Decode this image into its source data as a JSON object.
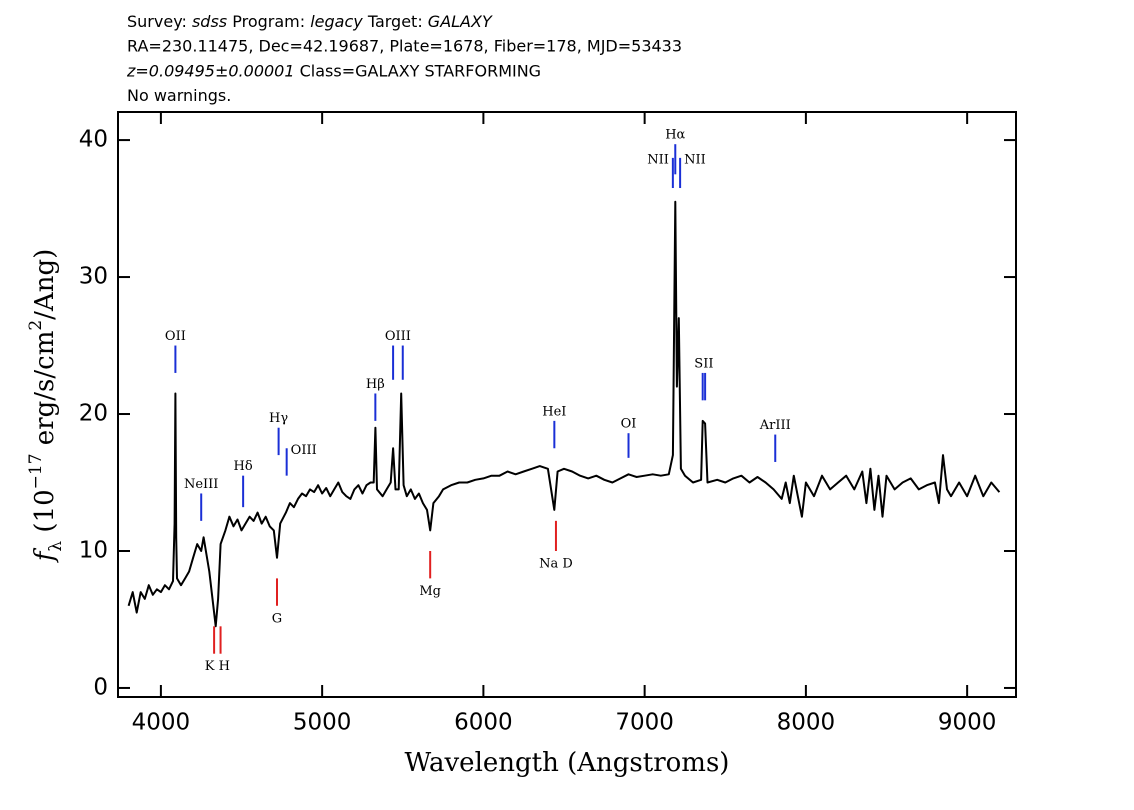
{
  "chart_data": {
    "type": "line",
    "header": [
      [
        {
          "text": "Survey: ",
          "italic": false
        },
        {
          "text": "sdss",
          "italic": true
        },
        {
          "text": " Program: ",
          "italic": false
        },
        {
          "text": "legacy",
          "italic": true
        },
        {
          "text": " Target: ",
          "italic": false
        },
        {
          "text": "GALAXY",
          "italic": true
        }
      ],
      [
        {
          "text": "RA=230.11475, Dec=42.19687, Plate=1678, Fiber=178, MJD=53433",
          "italic": false
        }
      ],
      [
        {
          "text": "z=0.09495±0.00001",
          "italic": true
        },
        {
          "text": " Class=GALAXY STARFORMING",
          "italic": false
        }
      ],
      [
        {
          "text": "No warnings.",
          "italic": false
        }
      ]
    ],
    "xlabel": "Wavelength (Angstroms)",
    "ylabel": [
      {
        "text": "f",
        "style": "italic"
      },
      {
        "text": "λ",
        "style": "sub"
      },
      {
        "text": " (10",
        "style": "normal"
      },
      {
        "text": "−17",
        "style": "sup"
      },
      {
        "text": " erg/s/cm",
        "style": "normal"
      },
      {
        "text": "2",
        "style": "sup"
      },
      {
        "text": "/Ang)",
        "style": "normal"
      }
    ],
    "xlim": [
      3734,
      9303
    ],
    "ylim": [
      -0.66,
      42.05
    ],
    "xticks": [
      4000,
      5000,
      6000,
      7000,
      8000,
      9000
    ],
    "yticks": [
      0,
      10,
      20,
      30,
      40
    ],
    "x": [
      3800,
      3825,
      3850,
      3875,
      3900,
      3925,
      3950,
      3975,
      4000,
      4025,
      4050,
      4075,
      4085,
      4090,
      4095,
      4100,
      4125,
      4150,
      4175,
      4200,
      4225,
      4250,
      4265,
      4300,
      4325,
      4340,
      4355,
      4370,
      4400,
      4425,
      4450,
      4475,
      4500,
      4525,
      4550,
      4575,
      4600,
      4625,
      4650,
      4675,
      4700,
      4720,
      4740,
      4775,
      4800,
      4825,
      4850,
      4875,
      4900,
      4925,
      4950,
      4975,
      5000,
      5025,
      5050,
      5075,
      5100,
      5125,
      5150,
      5175,
      5200,
      5225,
      5250,
      5275,
      5300,
      5320,
      5330,
      5340,
      5375,
      5400,
      5425,
      5440,
      5455,
      5475,
      5490,
      5505,
      5525,
      5550,
      5575,
      5600,
      5625,
      5650,
      5670,
      5690,
      5725,
      5750,
      5800,
      5850,
      5900,
      5950,
      6000,
      6050,
      6100,
      6150,
      6200,
      6250,
      6300,
      6350,
      6400,
      6440,
      6460,
      6500,
      6550,
      6600,
      6650,
      6700,
      6750,
      6800,
      6850,
      6900,
      6950,
      7000,
      7050,
      7100,
      7150,
      7175,
      7190,
      7200,
      7212,
      7225,
      7250,
      7300,
      7350,
      7360,
      7375,
      7390,
      7450,
      7500,
      7550,
      7600,
      7650,
      7700,
      7750,
      7800,
      7850,
      7875,
      7900,
      7925,
      7950,
      7975,
      8000,
      8050,
      8100,
      8150,
      8200,
      8250,
      8300,
      8350,
      8375,
      8400,
      8425,
      8450,
      8475,
      8500,
      8550,
      8600,
      8650,
      8700,
      8750,
      8800,
      8825,
      8850,
      8875,
      8900,
      8950,
      9000,
      9050,
      9100,
      9150,
      9200
    ],
    "series": [
      {
        "color": "#000000",
        "values": [
          6.0,
          7.0,
          5.5,
          7.0,
          6.5,
          7.5,
          6.8,
          7.2,
          7.0,
          7.5,
          7.2,
          7.8,
          12,
          21.5,
          11,
          8.0,
          7.5,
          8.0,
          8.5,
          9.5,
          10.5,
          10.0,
          11.0,
          8.5,
          6.0,
          4.5,
          6.5,
          10.5,
          11.5,
          12.5,
          11.8,
          12.3,
          11.5,
          12.0,
          12.5,
          12.2,
          12.8,
          12.0,
          12.5,
          11.8,
          11.5,
          9.5,
          12.0,
          12.8,
          13.5,
          13.2,
          13.8,
          14.2,
          14.0,
          14.5,
          14.3,
          14.8,
          14.2,
          14.6,
          14.0,
          14.5,
          15.0,
          14.3,
          14.0,
          13.8,
          14.5,
          14.8,
          14.2,
          14.8,
          15.0,
          15.0,
          19.0,
          14.5,
          14.0,
          14.5,
          15.0,
          17.5,
          14.5,
          14.5,
          21.5,
          14.8,
          14.0,
          14.5,
          13.8,
          14.2,
          13.5,
          13.0,
          11.5,
          13.5,
          14.0,
          14.5,
          14.8,
          15.0,
          15.0,
          15.2,
          15.3,
          15.5,
          15.5,
          15.8,
          15.6,
          15.8,
          16.0,
          16.2,
          16.0,
          13.0,
          15.8,
          16.0,
          15.8,
          15.5,
          15.3,
          15.5,
          15.2,
          15.0,
          15.3,
          15.6,
          15.4,
          15.5,
          15.6,
          15.5,
          15.6,
          17.0,
          35.5,
          22,
          27,
          16,
          15.5,
          15.0,
          15.2,
          19.5,
          19.3,
          15.0,
          15.2,
          15.0,
          15.3,
          15.5,
          15.0,
          15.4,
          15.0,
          14.5,
          13.8,
          15.0,
          13.5,
          15.5,
          14.0,
          12.5,
          15.0,
          14.0,
          15.5,
          14.5,
          15.0,
          15.5,
          14.5,
          15.8,
          13.5,
          16.0,
          13.0,
          15.5,
          12.5,
          15.5,
          14.5,
          15.0,
          15.3,
          14.5,
          14.8,
          15.0,
          13.5,
          17.0,
          14.5,
          14.0,
          15.0,
          14.0,
          15.5,
          14.0,
          15.0,
          14.3
        ]
      }
    ],
    "annotations": [
      {
        "label": "OII",
        "color": "#1a2fd6",
        "side": "above",
        "ticks": [
          {
            "x": 4090,
            "y0": 23,
            "y1": 25
          }
        ]
      },
      {
        "label": "NeIII",
        "color": "#1a2fd6",
        "side": "above",
        "ticks": [
          {
            "x": 4250,
            "y0": 12.2,
            "y1": 14.2
          }
        ]
      },
      {
        "label": "Hδ",
        "color": "#1a2fd6",
        "side": "above",
        "ticks": [
          {
            "x": 4510,
            "y0": 13.2,
            "y1": 15.5
          }
        ]
      },
      {
        "label": "Hγ",
        "color": "#1a2fd6",
        "side": "above",
        "ticks": [
          {
            "x": 4730,
            "y0": 17,
            "y1": 19
          }
        ]
      },
      {
        "label": "OIII",
        "color": "#1a2fd6",
        "side": "above",
        "ticks": [
          {
            "x": 4780,
            "y0": 15.5,
            "y1": 17.5
          }
        ]
      },
      {
        "label": "Hβ",
        "color": "#1a2fd6",
        "side": "above",
        "ticks": [
          {
            "x": 5330,
            "y0": 19.5,
            "y1": 21.5
          }
        ]
      },
      {
        "label": "OIII",
        "color": "#1a2fd6",
        "side": "above",
        "ticks": [
          {
            "x": 5440,
            "y0": 22.5,
            "y1": 25
          },
          {
            "x": 5500,
            "y0": 22.5,
            "y1": 25
          }
        ]
      },
      {
        "label": "HeI",
        "color": "#1a2fd6",
        "side": "above",
        "ticks": [
          {
            "x": 6440,
            "y0": 17.5,
            "y1": 19.5
          }
        ]
      },
      {
        "label": "OI",
        "color": "#1a2fd6",
        "side": "above",
        "ticks": [
          {
            "x": 6900,
            "y0": 16.8,
            "y1": 18.6
          }
        ]
      },
      {
        "label": "NII",
        "color": "#1a2fd6",
        "side": "above",
        "ticks": [
          {
            "x": 7175,
            "y0": 36.5,
            "y1": 38.7
          }
        ]
      },
      {
        "label": "Hα",
        "color": "#1a2fd6",
        "side": "above",
        "ticks": [
          {
            "x": 7190,
            "y0": 37.5,
            "y1": 39.7
          }
        ]
      },
      {
        "label": "NII",
        "color": "#1a2fd6",
        "side": "above",
        "ticks": [
          {
            "x": 7220,
            "y0": 36.5,
            "y1": 38.7
          }
        ]
      },
      {
        "label": "SII",
        "color": "#1a2fd6",
        "side": "above",
        "ticks": [
          {
            "x": 7360,
            "y0": 21,
            "y1": 23
          },
          {
            "x": 7375,
            "y0": 21,
            "y1": 23
          }
        ]
      },
      {
        "label": "ArIII",
        "color": "#1a2fd6",
        "side": "above",
        "ticks": [
          {
            "x": 7810,
            "y0": 16.5,
            "y1": 18.5
          }
        ]
      },
      {
        "label": "K H",
        "color": "#e02020",
        "side": "below",
        "ticks": [
          {
            "x": 4330,
            "y0": 2.5,
            "y1": 4.5
          },
          {
            "x": 4370,
            "y0": 2.5,
            "y1": 4.5
          }
        ]
      },
      {
        "label": "G",
        "color": "#e02020",
        "side": "below",
        "ticks": [
          {
            "x": 4720,
            "y0": 6.0,
            "y1": 8.0
          }
        ]
      },
      {
        "label": "Mg",
        "color": "#e02020",
        "side": "below",
        "ticks": [
          {
            "x": 5670,
            "y0": 8.0,
            "y1": 10.0
          }
        ]
      },
      {
        "label": "Na D",
        "color": "#e02020",
        "side": "below",
        "ticks": [
          {
            "x": 6450,
            "y0": 10.0,
            "y1": 12.2
          }
        ]
      }
    ]
  }
}
